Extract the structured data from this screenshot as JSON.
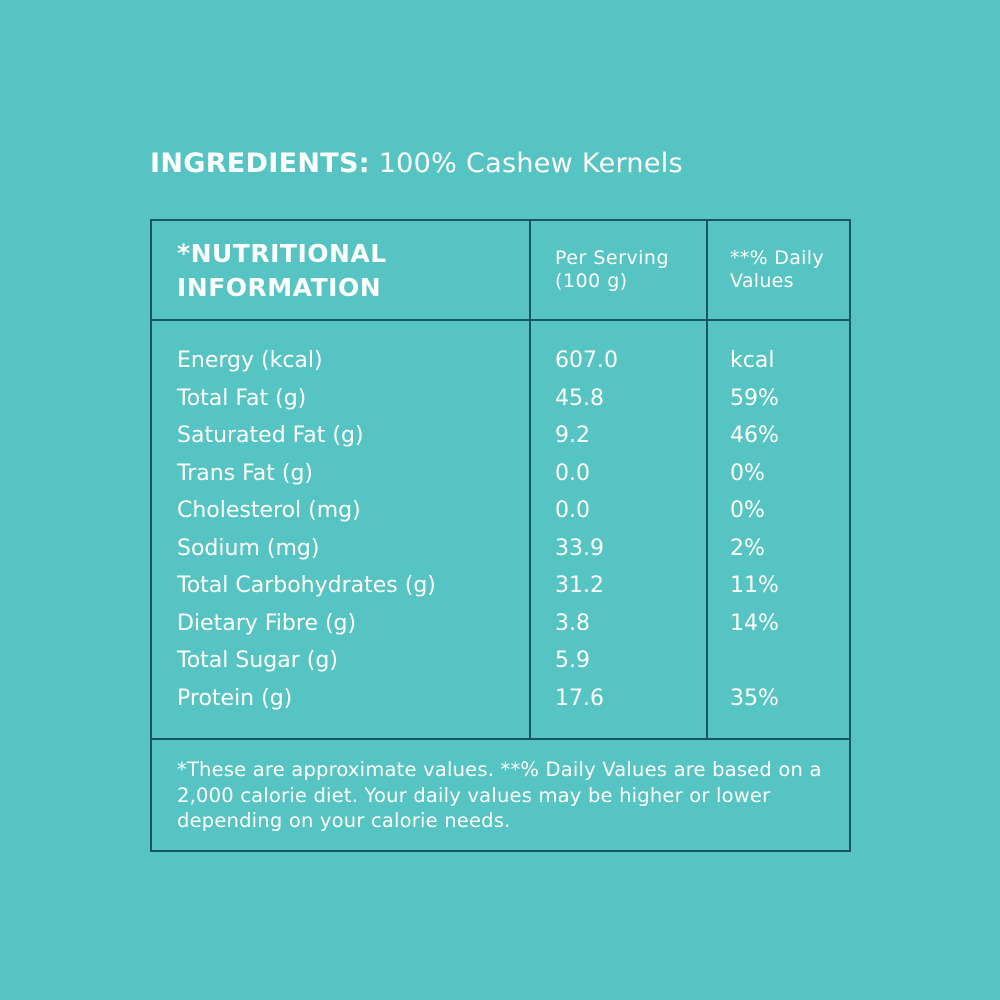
{
  "ingredients": {
    "label": "INGREDIENTS:",
    "value": "100% Cashew Kernels"
  },
  "table": {
    "headers": [
      "*NUTRITIONAL INFORMATION",
      "Per Serving (100 g)",
      "**% Daily Values"
    ],
    "header_lines": {
      "h1a": "*NUTRITIONAL",
      "h1b": "INFORMATION",
      "h2a": "Per Serving",
      "h2b": "(100 g)",
      "h3a": "**% Daily",
      "h3b": "Values"
    },
    "rows": [
      {
        "nutrient": "Energy (kcal)",
        "per_serving": "607.0",
        "daily": "kcal"
      },
      {
        "nutrient": "Total Fat (g)",
        "per_serving": "45.8",
        "daily": "59%"
      },
      {
        "nutrient": "Saturated Fat (g)",
        "per_serving": "9.2",
        "daily": "46%"
      },
      {
        "nutrient": "Trans Fat (g)",
        "per_serving": "0.0",
        "daily": "0%"
      },
      {
        "nutrient": "Cholesterol (mg)",
        "per_serving": "0.0",
        "daily": "0%"
      },
      {
        "nutrient": "Sodium (mg)",
        "per_serving": "33.9",
        "daily": "2%"
      },
      {
        "nutrient": "Total Carbohydrates (g)",
        "per_serving": "31.2",
        "daily": "11%"
      },
      {
        "nutrient": "Dietary Fibre (g)",
        "per_serving": "3.8",
        "daily": "14%"
      },
      {
        "nutrient": "Total Sugar (g)",
        "per_serving": "5.9",
        "daily": ""
      },
      {
        "nutrient": "Protein (g)",
        "per_serving": "17.6",
        "daily": "35%"
      }
    ],
    "footnote": "*These are approximate values. **% Daily Values are based on a 2,000 calorie diet. Your daily values may be higher or lower depending on your calorie needs."
  },
  "colors": {
    "background": "#56c4c2",
    "border": "#1a5560",
    "text": "#ffffff"
  }
}
